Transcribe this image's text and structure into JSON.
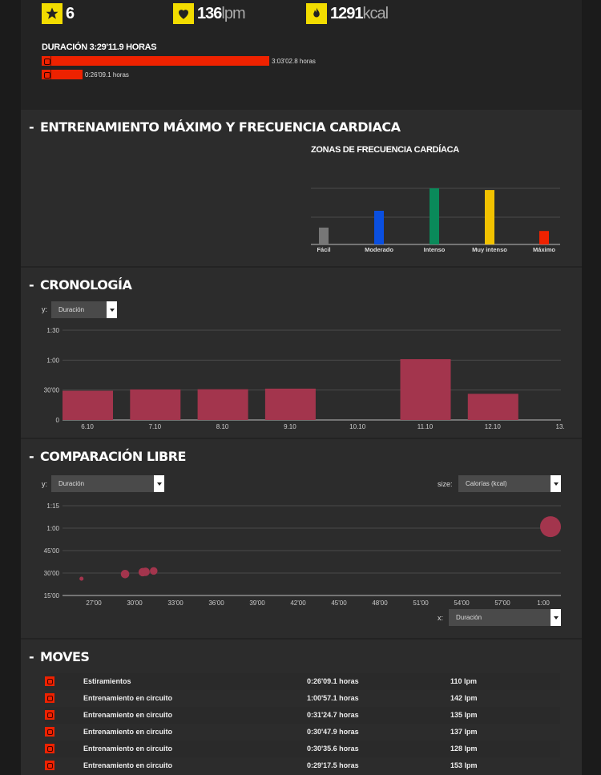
{
  "summary": {
    "moves_count": "6",
    "heart_rate_value": "136",
    "heart_rate_unit": "lpm",
    "calories_value": "1291",
    "calories_unit": "kcal",
    "duration_title": "DURACIÓN 3:29'11.9 HORAS",
    "duration_bars": [
      {
        "label": "3:03'02.8 horas",
        "share": 0.874
      },
      {
        "label": "0:26'09.1 horas",
        "share": 0.125
      }
    ]
  },
  "section_hr": {
    "title": "ENTRENAMIENTO MÁXIMO Y FRECUENCIA CARDIACA",
    "zones_title": "ZONAS DE FRECUENCIA CARDÍACA"
  },
  "section_chrono": {
    "title": "CRONOLOGÍA",
    "y_label": "y:",
    "y_select": "Duración"
  },
  "section_compare": {
    "title": "COMPARACIÓN LIBRE",
    "y_label": "y:",
    "y_select": "Duración",
    "size_label": "size:",
    "size_select": "Calorías (kcal)",
    "x_label": "x:",
    "x_select": "Duración"
  },
  "section_moves": {
    "title": "MOVES",
    "rows": [
      {
        "name": "Estiramientos",
        "duration": "0:26'09.1 horas",
        "hr": "110 lpm"
      },
      {
        "name": "Entrenamiento en circuito",
        "duration": "1:00'57.1 horas",
        "hr": "142 lpm"
      },
      {
        "name": "Entrenamiento en circuito",
        "duration": "0:31'24.7 horas",
        "hr": "135 lpm"
      },
      {
        "name": "Entrenamiento en circuito",
        "duration": "0:30'47.9 horas",
        "hr": "137 lpm"
      },
      {
        "name": "Entrenamiento en circuito",
        "duration": "0:30'35.6 horas",
        "hr": "128 lpm"
      },
      {
        "name": "Entrenamiento en circuito",
        "duration": "0:29'17.5 horas",
        "hr": "153 lpm"
      }
    ]
  },
  "chart_data": [
    {
      "type": "bar",
      "title": "ZONAS DE FRECUENCIA CARDÍACA",
      "categories": [
        "Fácil",
        "Moderado",
        "Intenso",
        "Muy intenso",
        "Máximo"
      ],
      "values": [
        0.3,
        0.6,
        1.0,
        0.97,
        0.24
      ],
      "colors": [
        "#777777",
        "#0a4fe0",
        "#0a8a5a",
        "#f2c200",
        "#ee2200"
      ],
      "ylim": [
        0,
        1
      ]
    },
    {
      "type": "bar",
      "categories": [
        "6.10",
        "7.10",
        "8.10",
        "9.10",
        "10.10",
        "11.10",
        "12.10",
        "13."
      ],
      "values": [
        29.3,
        30.6,
        30.8,
        31.4,
        0,
        61,
        26.2,
        0
      ],
      "yticks": [
        "0",
        "30'00",
        "1:00",
        "1:30"
      ],
      "ylim": [
        0,
        90
      ],
      "color": "#a3354d"
    },
    {
      "type": "scatter",
      "x_ticks": [
        "27'00",
        "30'00",
        "33'00",
        "36'00",
        "39'00",
        "42'00",
        "45'00",
        "48'00",
        "51'00",
        "54'00",
        "57'00",
        "1:00"
      ],
      "y_ticks": [
        "15'00",
        "30'00",
        "45'00",
        "1:00",
        "1:15"
      ],
      "xlim": [
        25,
        61
      ],
      "ylim": [
        15,
        75
      ],
      "points": [
        {
          "x": 26.1,
          "y": 26.2,
          "size": 0.05
        },
        {
          "x": 29.3,
          "y": 29.3,
          "size": 0.3
        },
        {
          "x": 30.6,
          "y": 30.6,
          "size": 0.3
        },
        {
          "x": 30.8,
          "y": 30.8,
          "size": 0.3
        },
        {
          "x": 31.4,
          "y": 31.4,
          "size": 0.25
        },
        {
          "x": 61,
          "y": 61,
          "size": 1.0
        }
      ],
      "color": "#a3354d"
    }
  ]
}
